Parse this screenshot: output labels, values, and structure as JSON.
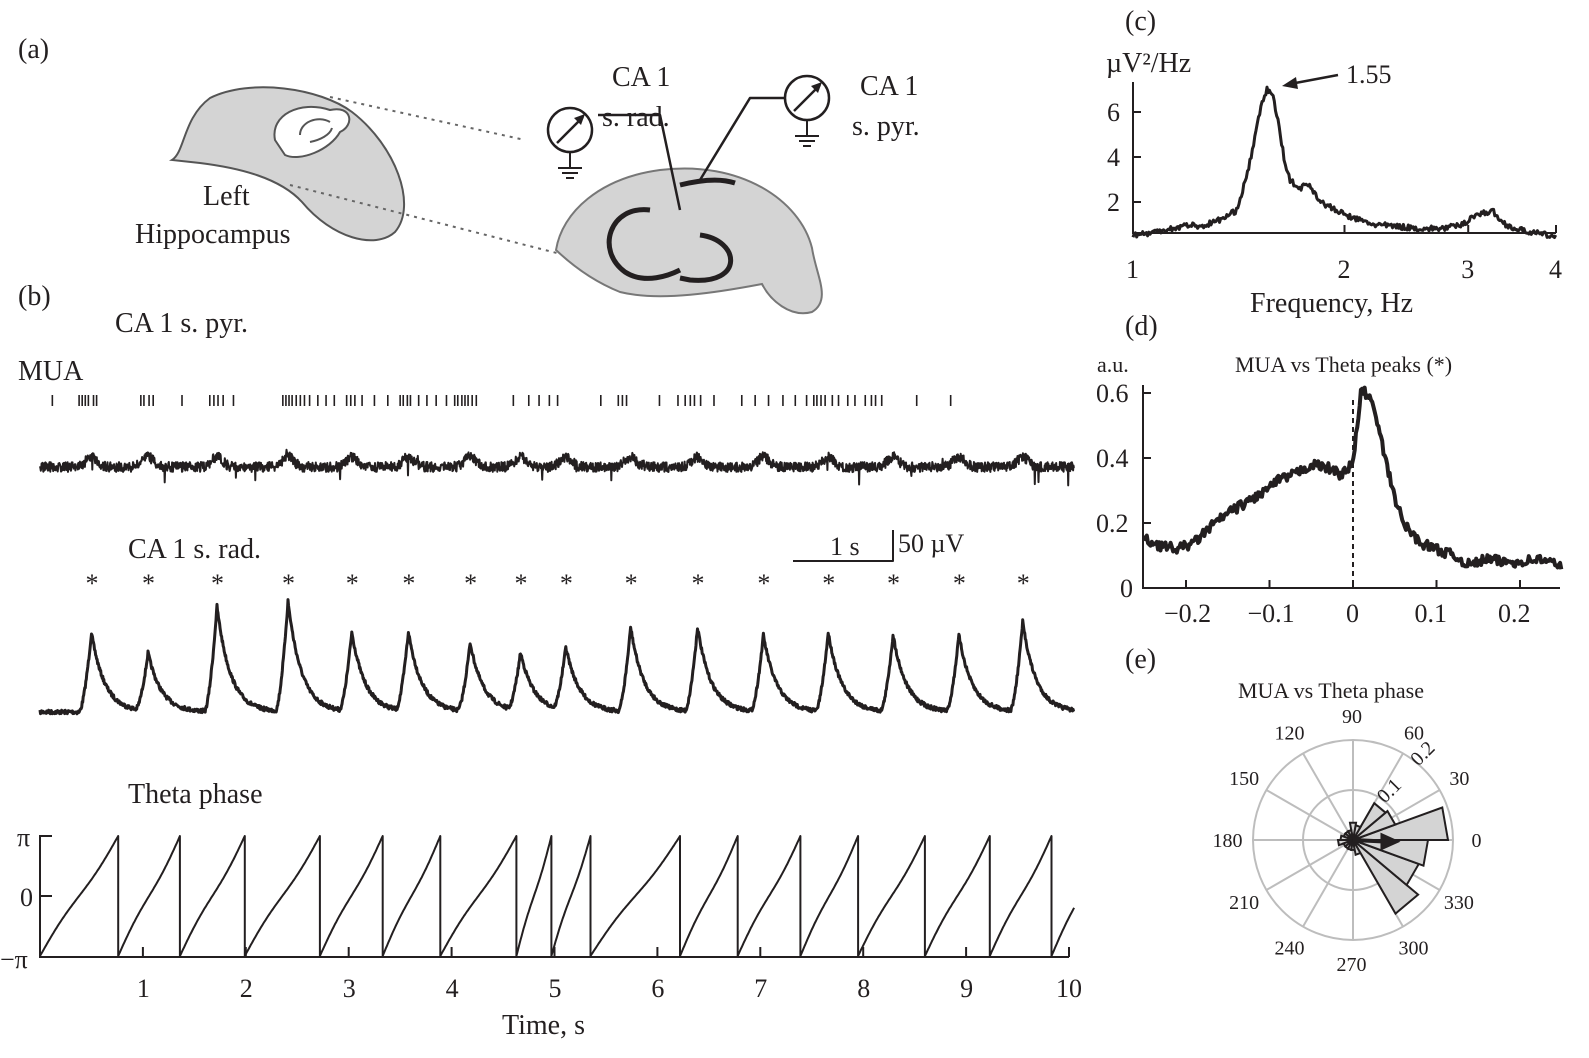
{
  "panels": {
    "a": {
      "label": "(a)",
      "left_label_1": "Left",
      "left_label_2": "Hippocampus",
      "electrode_rad_1": "CA 1",
      "electrode_rad_2": "s. rad.",
      "electrode_pyr_1": "CA 1",
      "electrode_pyr_2": "s. pyr."
    },
    "b": {
      "label": "(b)",
      "pyr_title": "CA 1 s. pyr.",
      "mua_label": "MUA",
      "rad_title": "CA 1 s. rad.",
      "phase_title": "Theta phase",
      "scale_time": "1 s",
      "scale_volt": "50 µV",
      "asterisk": "*"
    },
    "c": {
      "label": "(c)"
    },
    "d": {
      "label": "(d)"
    },
    "e": {
      "label": "(e)"
    }
  },
  "colors": {
    "ink": "#231f20",
    "fill": "#d4d4d4",
    "grid": "#bdbdbd"
  },
  "chart_data": [
    {
      "id": "spectrum",
      "type": "line",
      "ylabel": "µV²/Hz",
      "xlabel": "Frequency, Hz",
      "xscale": "log",
      "xlim": [
        1,
        4
      ],
      "ylim": [
        0.6,
        7.2
      ],
      "xticks": [
        "1",
        "2",
        "3",
        "4"
      ],
      "yticks": [
        "2",
        "4",
        "6"
      ],
      "annotation": "1.55",
      "peak": [
        1.55,
        7.0
      ],
      "x": [
        1.0,
        1.05,
        1.1,
        1.15,
        1.2,
        1.25,
        1.3,
        1.35,
        1.4,
        1.43,
        1.46,
        1.49,
        1.52,
        1.55,
        1.58,
        1.61,
        1.64,
        1.67,
        1.72,
        1.78,
        1.85,
        1.95,
        2.05,
        2.2,
        2.4,
        2.6,
        2.8,
        2.95,
        3.05,
        3.15,
        3.25,
        3.35,
        3.5,
        3.7,
        3.85,
        4.0
      ],
      "y": [
        0.55,
        0.6,
        0.75,
        0.85,
        1.0,
        0.9,
        1.1,
        1.3,
        1.6,
        2.4,
        3.5,
        4.8,
        6.2,
        7.0,
        6.8,
        5.5,
        4.0,
        3.0,
        2.6,
        2.8,
        2.0,
        1.6,
        1.3,
        1.0,
        0.9,
        0.8,
        0.85,
        1.0,
        1.4,
        1.5,
        1.6,
        1.1,
        0.8,
        0.65,
        0.55,
        0.45
      ]
    },
    {
      "id": "mua-vs-theta-peaks",
      "type": "line",
      "title": "MUA vs Theta peaks (*)",
      "ylabel": "a.u.",
      "xlim": [
        -0.25,
        0.25
      ],
      "ylim": [
        0,
        0.62
      ],
      "xticks": [
        "−0.2",
        "−0.1",
        "0",
        "0.1",
        "0.2"
      ],
      "xtick_values": [
        -0.2,
        -0.1,
        0,
        0.1,
        0.2
      ],
      "yticks": [
        "0",
        "0.2",
        "0.4",
        "0.6"
      ],
      "ytick_values": [
        0,
        0.2,
        0.4,
        0.6
      ],
      "x": [
        -0.25,
        -0.23,
        -0.21,
        -0.19,
        -0.17,
        -0.15,
        -0.13,
        -0.11,
        -0.09,
        -0.07,
        -0.05,
        -0.03,
        -0.015,
        0,
        0.005,
        0.01,
        0.02,
        0.03,
        0.04,
        0.05,
        0.06,
        0.08,
        0.1,
        0.12,
        0.14,
        0.16,
        0.18,
        0.2,
        0.22,
        0.25
      ],
      "y": [
        0.15,
        0.13,
        0.12,
        0.14,
        0.19,
        0.23,
        0.26,
        0.29,
        0.33,
        0.35,
        0.38,
        0.37,
        0.35,
        0.38,
        0.5,
        0.61,
        0.59,
        0.5,
        0.38,
        0.28,
        0.2,
        0.14,
        0.12,
        0.1,
        0.07,
        0.09,
        0.08,
        0.08,
        0.09,
        0.07
      ]
    },
    {
      "id": "mua-vs-theta-phase",
      "type": "polar-histogram",
      "title": "MUA vs Theta phase",
      "angle_labels": [
        "0",
        "30",
        "60",
        "90",
        "120",
        "150",
        "180",
        "210",
        "240",
        "270",
        "300",
        "330"
      ],
      "radial_labels": [
        "0.1",
        "0.2"
      ],
      "rmax": 0.2,
      "bin_centers_deg": [
        10,
        30,
        50,
        70,
        90,
        110,
        130,
        150,
        170,
        190,
        210,
        230,
        250,
        270,
        290,
        310,
        330,
        350
      ],
      "values": [
        0.19,
        0.09,
        0.085,
        0.03,
        0.035,
        0.02,
        0.02,
        0.02,
        0.025,
        0.03,
        0.02,
        0.02,
        0.02,
        0.02,
        0.03,
        0.17,
        0.14,
        0.15
      ],
      "mean_vector": {
        "angle_deg": -2,
        "length": 0.095
      }
    },
    {
      "id": "recordings",
      "type": "line",
      "xlabel": "Time, s",
      "xlim": [
        0,
        10
      ],
      "xticks": [
        "1",
        "2",
        "3",
        "4",
        "5",
        "6",
        "7",
        "8",
        "9",
        "10"
      ],
      "phase_yticks": [
        "π",
        "0",
        "−π"
      ],
      "theta_peak_times": [
        0.5,
        1.05,
        1.72,
        2.41,
        3.03,
        3.58,
        4.18,
        4.67,
        5.11,
        5.74,
        6.39,
        7.03,
        7.66,
        8.29,
        8.93,
        9.55
      ],
      "theta_peak_amplitudes_uv": [
        150,
        110,
        200,
        210,
        150,
        150,
        130,
        110,
        120,
        160,
        160,
        145,
        150,
        145,
        145,
        170
      ],
      "phase_reset_times": [
        0.76,
        1.36,
        1.99,
        2.72,
        3.33,
        3.89,
        4.63,
        4.97,
        5.35,
        6.22,
        6.78,
        7.39,
        7.95,
        8.6,
        9.23,
        9.83
      ],
      "mua_spike_times": [
        0.12,
        0.38,
        0.41,
        0.44,
        0.47,
        0.52,
        0.55,
        0.98,
        1.01,
        1.06,
        1.1,
        1.38,
        1.65,
        1.69,
        1.73,
        1.78,
        1.88,
        2.36,
        2.39,
        2.42,
        2.45,
        2.49,
        2.53,
        2.57,
        2.62,
        2.7,
        2.78,
        2.86,
        2.98,
        3.02,
        3.06,
        3.13,
        3.25,
        3.38,
        3.5,
        3.53,
        3.57,
        3.6,
        3.68,
        3.76,
        3.85,
        3.95,
        4.03,
        4.06,
        4.1,
        4.13,
        4.16,
        4.2,
        4.24,
        4.6,
        4.75,
        4.85,
        4.95,
        5.03,
        5.45,
        5.62,
        5.66,
        5.7,
        6.02,
        6.2,
        6.27,
        6.32,
        6.36,
        6.42,
        6.55,
        6.82,
        6.95,
        7.08,
        7.22,
        7.34,
        7.45,
        7.52,
        7.55,
        7.59,
        7.63,
        7.7,
        7.76,
        7.85,
        7.92,
        8.02,
        8.08,
        8.12,
        8.18,
        8.52,
        8.85
      ]
    }
  ]
}
